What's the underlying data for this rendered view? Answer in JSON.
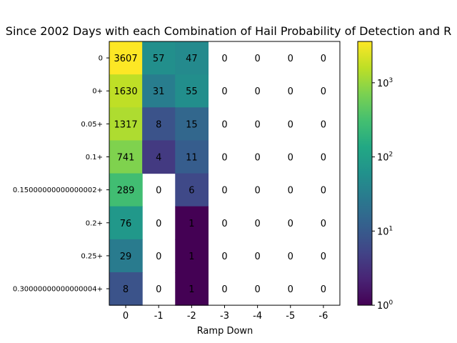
{
  "chart_data": {
    "type": "heatmap",
    "title": "Since 2002 Days with each Combination of Hail Probability of Detection and R",
    "xlabel": "Ramp Down",
    "ylabel": "",
    "x_categories": [
      "0",
      "-1",
      "-2",
      "-3",
      "-4",
      "-5",
      "-6"
    ],
    "y_categories": [
      "0",
      "0+",
      "0.05+",
      "0.1+",
      "0.15000000000000002+",
      "0.2+",
      "0.25+",
      "0.30000000000000004+"
    ],
    "values": [
      [
        3607,
        57,
        47,
        0,
        0,
        0,
        0
      ],
      [
        1630,
        31,
        55,
        0,
        0,
        0,
        0
      ],
      [
        1317,
        8,
        15,
        0,
        0,
        0,
        0
      ],
      [
        741,
        4,
        11,
        0,
        0,
        0,
        0
      ],
      [
        289,
        0,
        6,
        0,
        0,
        0,
        0
      ],
      [
        76,
        0,
        1,
        0,
        0,
        0,
        0
      ],
      [
        29,
        0,
        1,
        0,
        0,
        0,
        0
      ],
      [
        8,
        0,
        1,
        0,
        0,
        0,
        0
      ]
    ],
    "color_scale": "log",
    "colormap": "viridis",
    "zero_cells_blank": true,
    "colorbar": {
      "range": [
        1,
        3607
      ],
      "tick_labels": [
        {
          "base": "10",
          "exp": "0",
          "value": 1
        },
        {
          "base": "10",
          "exp": "1",
          "value": 10
        },
        {
          "base": "10",
          "exp": "2",
          "value": 100
        },
        {
          "base": "10",
          "exp": "3",
          "value": 1000
        }
      ]
    },
    "grid": false,
    "legend": "none"
  }
}
